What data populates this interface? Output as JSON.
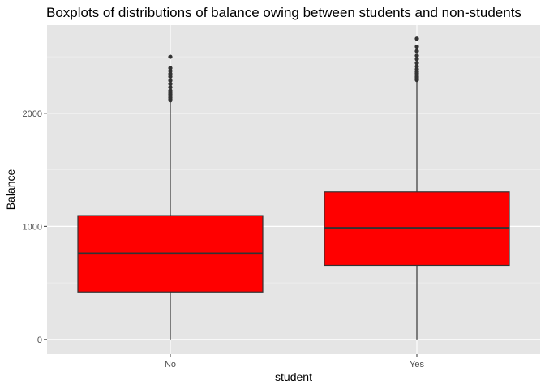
{
  "chart_data": {
    "type": "boxplot",
    "title": "Boxplots of distributions of balance owing between students and non-students",
    "xlabel": "student",
    "ylabel": "Balance",
    "categories": [
      "No",
      "Yes"
    ],
    "ylim": [
      -130,
      2780
    ],
    "yticks": [
      0,
      1000,
      2000
    ],
    "ytick_labels": [
      "0",
      "1000",
      "2000"
    ],
    "grid": true,
    "fill_color": "#ff0000",
    "panel_background": "#e5e5e5",
    "boxes": [
      {
        "category": "No",
        "whisker_low": 0,
        "q1": 420,
        "median": 760,
        "q3": 1095,
        "whisker_high": 2105,
        "outliers": [
          2115,
          2125,
          2140,
          2155,
          2170,
          2185,
          2200,
          2230,
          2260,
          2290,
          2325,
          2350,
          2375,
          2400,
          2500
        ]
      },
      {
        "category": "Yes",
        "whisker_low": 0,
        "q1": 655,
        "median": 985,
        "q3": 1305,
        "whisker_high": 2285,
        "outliers": [
          2295,
          2305,
          2315,
          2325,
          2340,
          2355,
          2370,
          2390,
          2415,
          2445,
          2480,
          2510,
          2550,
          2590,
          2660
        ]
      }
    ]
  }
}
